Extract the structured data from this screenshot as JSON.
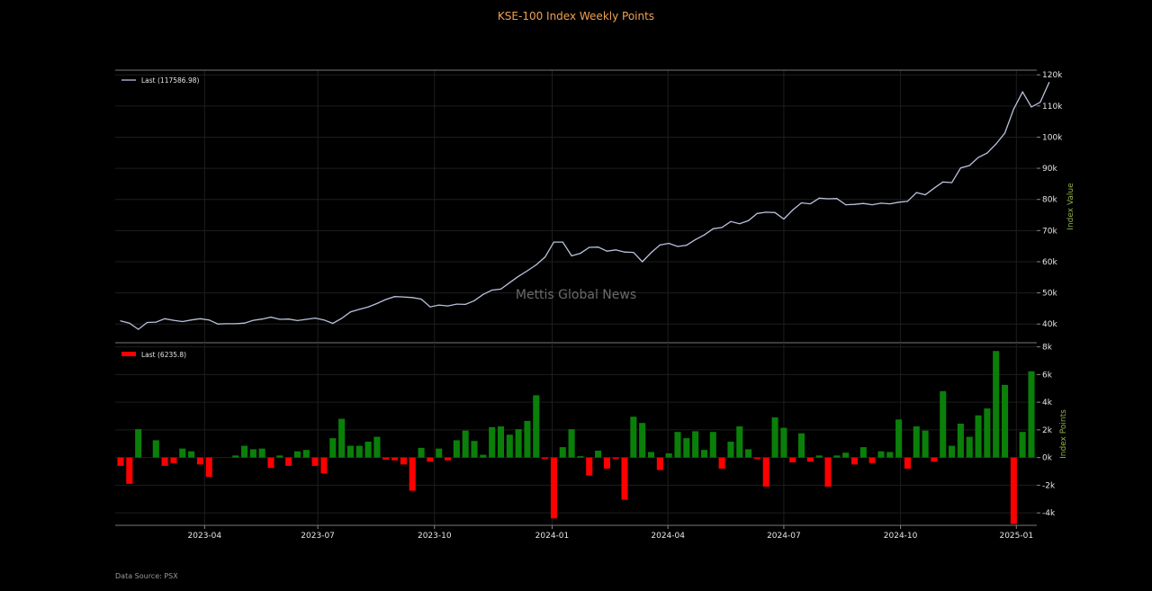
{
  "title": "KSE-100 Index Weekly Points",
  "source": "Data Source: PSX",
  "watermark": "Mettis Global News",
  "colors": {
    "line": "#b8c2dc",
    "positive": "#0a7f0a",
    "negative": "#ff0000",
    "title": "#f0a050",
    "axis_label": "#8db04a"
  },
  "chart_data": [
    {
      "type": "line",
      "series": [
        {
          "name": "Last (117586.98)"
        }
      ],
      "ylabel": "Index Value",
      "ylim": [
        34000,
        121500
      ],
      "yticks": [
        40000,
        50000,
        60000,
        70000,
        80000,
        90000,
        100000,
        110000,
        120000
      ],
      "ytick_labels": [
        "40k",
        "50k",
        "60k",
        "70k",
        "80k",
        "90k",
        "100k",
        "110k",
        "120k"
      ],
      "xticks": [
        "2023-04",
        "2023-07",
        "2023-10",
        "2024-01",
        "2024-04",
        "2024-07",
        "2024-10",
        "2025-01"
      ],
      "xtick_weeks": [
        9.5,
        22.3,
        35.5,
        48.8,
        61.9,
        75.0,
        88.2,
        101.3
      ],
      "grid": true,
      "legend": "top-left",
      "values": [
        41000,
        40300,
        38300,
        40500,
        40600,
        41700,
        41200,
        40800,
        41300,
        41700,
        41300,
        40000,
        40100,
        40100,
        40300,
        41200,
        41600,
        42200,
        41500,
        41600,
        41100,
        41500,
        41900,
        41300,
        40200,
        41800,
        43900,
        44700,
        45500,
        46600,
        47900,
        48800,
        48700,
        48500,
        48000,
        45500,
        46100,
        45800,
        46400,
        46300,
        47500,
        49500,
        50900,
        51200,
        53300,
        55300,
        57100,
        59000,
        61500,
        66300,
        66300,
        61900,
        62700,
        64600,
        64700,
        63400,
        63800,
        63100,
        63000,
        60000,
        62900,
        65400,
        65900,
        64900,
        65300,
        67100,
        68600,
        70600,
        71000,
        72900,
        72200,
        73200,
        75500,
        75900,
        75800,
        73700,
        76600,
        78900,
        78600,
        80400,
        80200,
        80300,
        78300,
        78400,
        78700,
        78300,
        78800,
        78600,
        79100,
        79400,
        82200,
        81500,
        83600,
        85600,
        85400,
        90100,
        90900,
        93500,
        94900,
        97800,
        101300,
        109000,
        114500,
        109700,
        111200,
        117587
      ]
    },
    {
      "type": "bar",
      "series": [
        {
          "name": "Last (6235.8)"
        }
      ],
      "ylabel": "Index Points",
      "ylim": [
        -4900,
        8300
      ],
      "yticks": [
        -4000,
        -2000,
        0,
        2000,
        4000,
        6000,
        8000
      ],
      "ytick_labels": [
        "-4k",
        "-2k",
        "0k",
        "2k",
        "4k",
        "6k",
        "8k"
      ],
      "grid": true,
      "legend": "top-left",
      "values": [
        -600,
        -1900,
        2050,
        0,
        1250,
        -600,
        -400,
        650,
        450,
        -500,
        -1400,
        0,
        0,
        150,
        850,
        600,
        650,
        -750,
        150,
        -600,
        450,
        550,
        -600,
        -1150,
        1400,
        2800,
        850,
        850,
        1150,
        1500,
        -150,
        -200,
        -500,
        -2400,
        700,
        -300,
        650,
        -200,
        1250,
        1950,
        1200,
        200,
        2200,
        2250,
        1650,
        2050,
        2650,
        4500,
        -100,
        -4400,
        750,
        2050,
        100,
        -1300,
        500,
        -800,
        -100,
        -3050,
        2950,
        2500,
        400,
        -900,
        300,
        1850,
        1400,
        1900,
        550,
        1850,
        -800,
        1150,
        2250,
        600,
        -100,
        -2100,
        2900,
        2150,
        -350,
        1750,
        -300,
        150,
        -2100,
        150,
        350,
        -500,
        750,
        -400,
        450,
        400,
        2750,
        -800,
        2250,
        1950,
        -300,
        4800,
        850,
        2450,
        1500,
        3050,
        3550,
        7700,
        5250,
        -4800,
        1850,
        6236
      ]
    }
  ]
}
